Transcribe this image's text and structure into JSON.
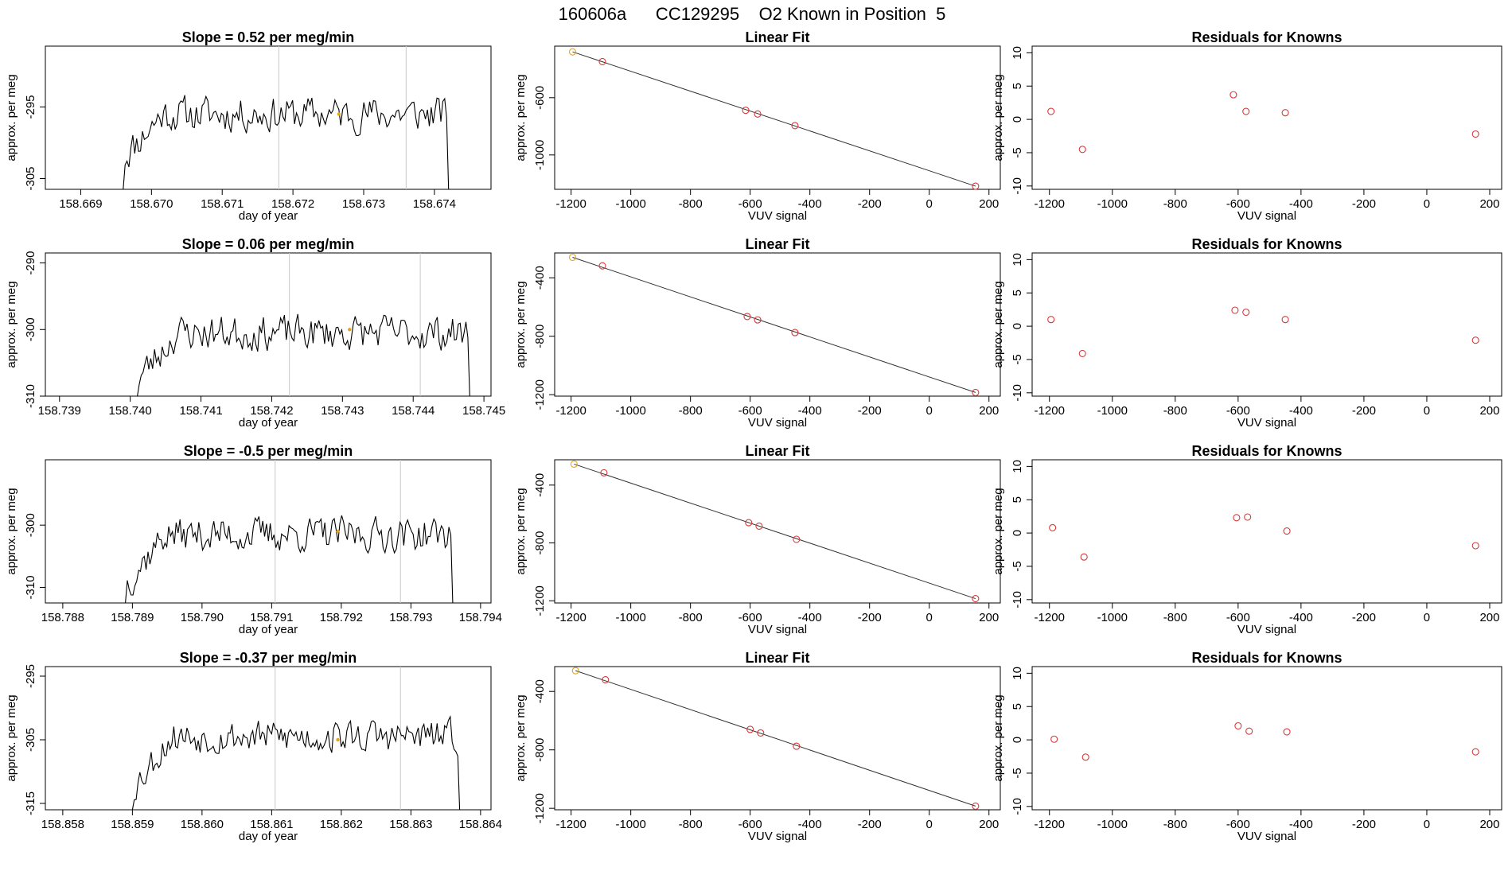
{
  "figure": {
    "title": "160606a      CC129295    O2 Known in Position  5",
    "colors": {
      "line": "#000000",
      "marker": "#d63a3a",
      "highlight": "#e8a317",
      "refline": "#c8c8c8",
      "fitline": "#333333"
    }
  },
  "chart_data": [
    {
      "id": "r0-ts",
      "type": "line",
      "title": "Slope =  0.52  per meg/min",
      "xlabel": "day of year",
      "ylabel": "approx. per meg",
      "xlim": [
        158.6685,
        158.6748
      ],
      "ylim": [
        -306.5,
        -286.5
      ],
      "xticks": [
        158.669,
        158.67,
        158.671,
        158.672,
        158.673,
        158.674
      ],
      "xtick_labels": [
        "158.669",
        "158.670",
        "158.671",
        "158.672",
        "158.673",
        "158.674"
      ],
      "yticks": [
        -295,
        -305
      ],
      "ytick_labels": [
        "-295",
        "-305"
      ],
      "series": {
        "start": 158.6696,
        "end": 158.6742,
        "n": 170,
        "level": -296,
        "rise": 6,
        "amp": 3.4,
        "seed": 11
      },
      "vlines": [
        158.6718,
        158.6736
      ],
      "highlight_point": {
        "x": 158.67265,
        "y": -296
      }
    },
    {
      "id": "r0-fit",
      "type": "scatter",
      "title": "Linear Fit",
      "xlabel": "VUV signal",
      "ylabel": "approx. per meg",
      "xlim": [
        -1255,
        238
      ],
      "ylim": [
        -1240,
        -240
      ],
      "xticks": [
        -1200,
        -1000,
        -800,
        -600,
        -400,
        -200,
        0,
        200
      ],
      "xtick_labels": [
        "-1200",
        "-1000",
        "-800",
        "-600",
        "-400",
        "-200",
        "0",
        "200"
      ],
      "yticks": [
        -600,
        -1000
      ],
      "ytick_labels": [
        "-600",
        "-1000"
      ],
      "points": [
        [
          -1195,
          -280
        ],
        [
          -1095,
          -348
        ],
        [
          -615,
          -688
        ],
        [
          -575,
          -714
        ],
        [
          -450,
          -795
        ],
        [
          155,
          -1218
        ]
      ],
      "highlight_index": 0,
      "fit_line": [
        [
          -1195,
          -280
        ],
        [
          155,
          -1218
        ]
      ]
    },
    {
      "id": "r0-res",
      "type": "scatter",
      "title": "Residuals for Knowns",
      "xlabel": "VUV signal",
      "ylabel": "approx. per meg",
      "xlim": [
        -1255,
        238
      ],
      "ylim": [
        -10.5,
        11
      ],
      "xticks": [
        -1200,
        -1000,
        -800,
        -600,
        -400,
        -200,
        0,
        200
      ],
      "xtick_labels": [
        "-1200",
        "-1000",
        "-800",
        "-600",
        "-400",
        "-200",
        "0",
        "200"
      ],
      "yticks": [
        10,
        5,
        0,
        -5,
        -10
      ],
      "ytick_labels": [
        "10",
        "5",
        "0",
        "-5",
        "-10"
      ],
      "points": [
        [
          -1195,
          1.2
        ],
        [
          -1095,
          -4.5
        ],
        [
          -615,
          3.7
        ],
        [
          -575,
          1.2
        ],
        [
          -450,
          1.0
        ],
        [
          155,
          -2.2
        ]
      ]
    },
    {
      "id": "r1-ts",
      "type": "line",
      "title": "Slope =  0.06  per meg/min",
      "xlabel": "day of year",
      "ylabel": "approx. per meg",
      "xlim": [
        158.7388,
        158.7451
      ],
      "ylim": [
        -310,
        -288.5
      ],
      "xticks": [
        158.739,
        158.74,
        158.741,
        158.742,
        158.743,
        158.744,
        158.745
      ],
      "xtick_labels": [
        "158.739",
        "158.740",
        "158.741",
        "158.742",
        "158.743",
        "158.744",
        "158.745"
      ],
      "yticks": [
        -290,
        -300,
        -310
      ],
      "ytick_labels": [
        "-290",
        "-300",
        "-310"
      ],
      "series": {
        "start": 158.7401,
        "end": 158.7448,
        "n": 175,
        "level": -300.5,
        "rise": 7,
        "amp": 3.6,
        "seed": 23
      },
      "vlines": [
        158.74225,
        158.7441
      ],
      "highlight_point": {
        "x": 158.7431,
        "y": -300
      }
    },
    {
      "id": "r1-fit",
      "type": "scatter",
      "title": "Linear Fit",
      "xlabel": "VUV signal",
      "ylabel": "approx. per meg",
      "xlim": [
        -1255,
        238
      ],
      "ylim": [
        -1210,
        -230
      ],
      "xticks": [
        -1200,
        -1000,
        -800,
        -600,
        -400,
        -200,
        0,
        200
      ],
      "xtick_labels": [
        "-1200",
        "-1000",
        "-800",
        "-600",
        "-400",
        "-200",
        "0",
        "200"
      ],
      "yticks": [
        -400,
        -800,
        -1200
      ],
      "ytick_labels": [
        "-400",
        "-800",
        "-1200"
      ],
      "points": [
        [
          -1195,
          -260
        ],
        [
          -1095,
          -318
        ],
        [
          -610,
          -665
        ],
        [
          -575,
          -688
        ],
        [
          -450,
          -775
        ],
        [
          155,
          -1185
        ]
      ],
      "highlight_index": 0,
      "fit_line": [
        [
          -1195,
          -260
        ],
        [
          155,
          -1185
        ]
      ]
    },
    {
      "id": "r1-res",
      "type": "scatter",
      "title": "Residuals for Knowns",
      "xlabel": "VUV signal",
      "ylabel": "approx. per meg",
      "xlim": [
        -1255,
        238
      ],
      "ylim": [
        -10.5,
        11
      ],
      "xticks": [
        -1200,
        -1000,
        -800,
        -600,
        -400,
        -200,
        0,
        200
      ],
      "xtick_labels": [
        "-1200",
        "-1000",
        "-800",
        "-600",
        "-400",
        "-200",
        "0",
        "200"
      ],
      "yticks": [
        10,
        5,
        0,
        -5,
        -10
      ],
      "ytick_labels": [
        "10",
        "5",
        "0",
        "-5",
        "-10"
      ],
      "points": [
        [
          -1195,
          1.0
        ],
        [
          -1095,
          -4.1
        ],
        [
          -610,
          2.4
        ],
        [
          -575,
          2.1
        ],
        [
          -450,
          1.0
        ],
        [
          155,
          -2.1
        ]
      ]
    },
    {
      "id": "r2-ts",
      "type": "line",
      "title": "Slope =  -0.5  per meg/min",
      "xlabel": "day of year",
      "ylabel": "approx. per meg",
      "xlim": [
        158.78775,
        158.79415
      ],
      "ylim": [
        -312.5,
        -289.5
      ],
      "xticks": [
        158.788,
        158.789,
        158.79,
        158.791,
        158.792,
        158.793,
        158.794
      ],
      "xtick_labels": [
        "158.788",
        "158.789",
        "158.790",
        "158.791",
        "158.792",
        "158.793",
        "158.794"
      ],
      "yticks": [
        -300,
        -310
      ],
      "ytick_labels": [
        "-300",
        "-310"
      ],
      "series": {
        "start": 158.7889,
        "end": 158.7936,
        "n": 175,
        "level": -301.5,
        "rise": 8,
        "amp": 3.8,
        "seed": 37
      },
      "vlines": [
        158.79105,
        158.79285
      ],
      "highlight_point": {
        "x": 158.79195,
        "y": -301
      }
    },
    {
      "id": "r2-fit",
      "type": "scatter",
      "title": "Linear Fit",
      "xlabel": "VUV signal",
      "ylabel": "approx. per meg",
      "xlim": [
        -1255,
        238
      ],
      "ylim": [
        -1215,
        -225
      ],
      "xticks": [
        -1200,
        -1000,
        -800,
        -600,
        -400,
        -200,
        0,
        200
      ],
      "xtick_labels": [
        "-1200",
        "-1000",
        "-800",
        "-600",
        "-400",
        "-200",
        "0",
        "200"
      ],
      "yticks": [
        -400,
        -800,
        -1200
      ],
      "ytick_labels": [
        "-400",
        "-800",
        "-1200"
      ],
      "points": [
        [
          -1190,
          -255
        ],
        [
          -1090,
          -315
        ],
        [
          -605,
          -660
        ],
        [
          -570,
          -684
        ],
        [
          -445,
          -775
        ],
        [
          155,
          -1185
        ]
      ],
      "highlight_index": 0,
      "fit_line": [
        [
          -1190,
          -255
        ],
        [
          155,
          -1185
        ]
      ]
    },
    {
      "id": "r2-res",
      "type": "scatter",
      "title": "Residuals for Knowns",
      "xlabel": "VUV signal",
      "ylabel": "approx. per meg",
      "xlim": [
        -1255,
        238
      ],
      "ylim": [
        -10.5,
        11
      ],
      "xticks": [
        -1200,
        -1000,
        -800,
        -600,
        -400,
        -200,
        0,
        200
      ],
      "xtick_labels": [
        "-1200",
        "-1000",
        "-800",
        "-600",
        "-400",
        "-200",
        "0",
        "200"
      ],
      "yticks": [
        10,
        5,
        0,
        -5,
        -10
      ],
      "ytick_labels": [
        "10",
        "5",
        "0",
        "-5",
        "-10"
      ],
      "points": [
        [
          -1190,
          0.8
        ],
        [
          -1090,
          -3.6
        ],
        [
          -605,
          2.3
        ],
        [
          -570,
          2.4
        ],
        [
          -445,
          0.3
        ],
        [
          155,
          -1.9
        ]
      ]
    },
    {
      "id": "r3-ts",
      "type": "line",
      "title": "Slope =  -0.37  per meg/min",
      "xlabel": "day of year",
      "ylabel": "approx. per meg",
      "xlim": [
        158.85775,
        158.86415
      ],
      "ylim": [
        -316,
        -293.5
      ],
      "xticks": [
        158.858,
        158.859,
        158.86,
        158.861,
        158.862,
        158.863,
        158.864
      ],
      "xtick_labels": [
        "158.858",
        "158.859",
        "158.860",
        "158.861",
        "158.862",
        "158.863",
        "158.864"
      ],
      "yticks": [
        -295,
        -305,
        -315
      ],
      "ytick_labels": [
        "-295",
        "-305",
        "-315"
      ],
      "series": {
        "start": 158.859,
        "end": 158.8637,
        "n": 175,
        "level": -304.5,
        "rise": 8,
        "amp": 3.6,
        "seed": 53
      },
      "vlines": [
        158.86105,
        158.86285
      ],
      "highlight_point": {
        "x": 158.86195,
        "y": -305
      }
    },
    {
      "id": "r3-fit",
      "type": "scatter",
      "title": "Linear Fit",
      "xlabel": "VUV signal",
      "ylabel": "approx. per meg",
      "xlim": [
        -1255,
        238
      ],
      "ylim": [
        -1210,
        -230
      ],
      "xticks": [
        -1200,
        -1000,
        -800,
        -600,
        -400,
        -200,
        0,
        200
      ],
      "xtick_labels": [
        "-1200",
        "-1000",
        "-800",
        "-600",
        "-400",
        "-200",
        "0",
        "200"
      ],
      "yticks": [
        -400,
        -800,
        -1200
      ],
      "ytick_labels": [
        "-400",
        "-800",
        "-1200"
      ],
      "points": [
        [
          -1185,
          -258
        ],
        [
          -1085,
          -320
        ],
        [
          -600,
          -660
        ],
        [
          -565,
          -684
        ],
        [
          -445,
          -775
        ],
        [
          155,
          -1185
        ]
      ],
      "highlight_index": 0,
      "fit_line": [
        [
          -1185,
          -258
        ],
        [
          155,
          -1185
        ]
      ]
    },
    {
      "id": "r3-res",
      "type": "scatter",
      "title": "Residuals for Knowns",
      "xlabel": "VUV signal",
      "ylabel": "approx. per meg",
      "xlim": [
        -1255,
        238
      ],
      "ylim": [
        -10.5,
        11
      ],
      "xticks": [
        -1200,
        -1000,
        -800,
        -600,
        -400,
        -200,
        0,
        200
      ],
      "xtick_labels": [
        "-1200",
        "-1000",
        "-800",
        "-600",
        "-400",
        "-200",
        "0",
        "200"
      ],
      "yticks": [
        10,
        5,
        0,
        -5,
        -10
      ],
      "ytick_labels": [
        "10",
        "5",
        "0",
        "-5",
        "-10"
      ],
      "points": [
        [
          -1185,
          0.1
        ],
        [
          -1085,
          -2.6
        ],
        [
          -600,
          2.1
        ],
        [
          -565,
          1.3
        ],
        [
          -445,
          1.2
        ],
        [
          155,
          -1.8
        ]
      ]
    }
  ]
}
